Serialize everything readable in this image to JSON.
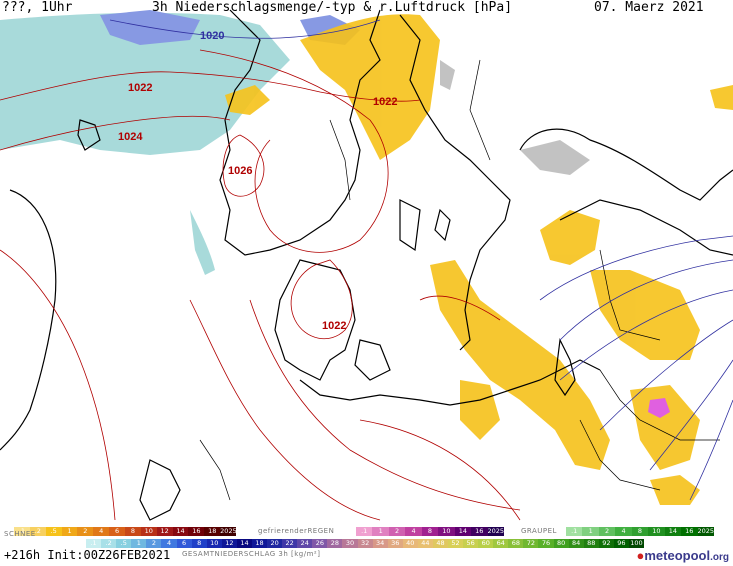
{
  "header": {
    "left": "???, 1Uhr",
    "center": "3h Niederschlagsmenge/-typ & r.Luftdruck [hPa]",
    "right": "07. Maerz 2021"
  },
  "isobars": [
    {
      "label": "1020",
      "color": "blue"
    },
    {
      "label": "1022",
      "color": "red"
    },
    {
      "label": "1022",
      "color": "red"
    },
    {
      "label": "1024",
      "color": "red"
    },
    {
      "label": "1026",
      "color": "red"
    },
    {
      "label": "1022",
      "color": "red"
    }
  ],
  "legend": {
    "rain_values": [
      ".1",
      ".2",
      ".5",
      "1",
      "2",
      "4",
      "6",
      "8",
      "10",
      "12",
      "14",
      "16",
      "18",
      "2025+"
    ],
    "freezing_label": "gefrierenderREGEN",
    "freezing_values": [
      ".1",
      "1",
      "2",
      "4",
      "8",
      "10",
      "14",
      "16",
      "2025+"
    ],
    "graupel_label": "GRAUPEL",
    "graupel_values": [
      ".1",
      "1",
      "2",
      "4",
      "8",
      "10",
      "14",
      "16",
      "2025+"
    ],
    "snow_label": "SCHNEE",
    "snow_values": [
      ".1",
      ".2",
      ".5",
      "1",
      "2",
      "4",
      "6",
      "8",
      "10",
      "12",
      "14"
    ],
    "total_values": [
      "18",
      "20",
      "22",
      "24",
      "26",
      "28",
      "30",
      "32",
      "34",
      "36",
      "40",
      "44",
      "48",
      "52",
      "56",
      "60",
      "64",
      "68",
      "72",
      "76",
      "80",
      "84",
      "88",
      "92",
      "96",
      "100"
    ],
    "total_label": "GESAMTNIEDERSCHLAG 3h [kg/m²]"
  },
  "footer": {
    "run": "+216h Init:00Z26FEB2021",
    "logo_main": "meteopool",
    "logo_suffix": ".org"
  },
  "colors": {
    "rain": "#f6c21a",
    "snow": "#9fd6d6",
    "isobar_red": "#b00000",
    "isobar_blue": "#3030a0",
    "logo": "#3a3a8c"
  }
}
